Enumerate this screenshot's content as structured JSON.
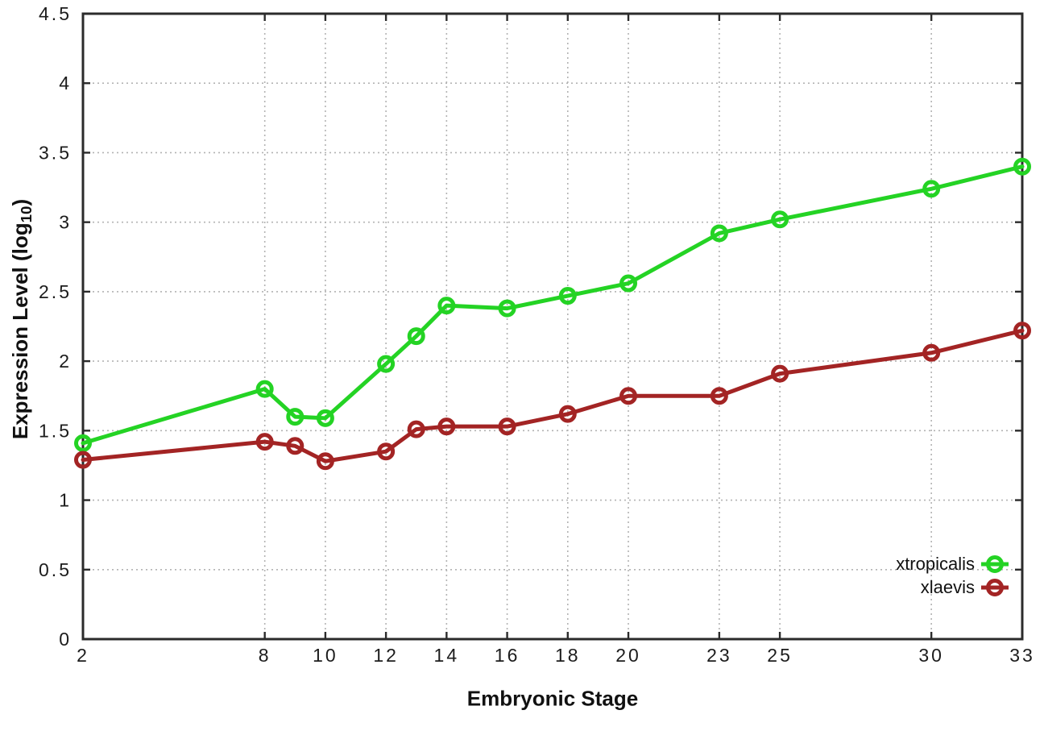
{
  "page": {
    "background": "#ffffff"
  },
  "chart_data": {
    "type": "line",
    "title": "",
    "xlabel": "Embryonic Stage",
    "ylabel": "Expression Level (log10)",
    "ylabel_parts": {
      "prefix": "Expression Level (log",
      "sub": "10",
      "suffix": ")"
    },
    "xlim": [
      2,
      33
    ],
    "ylim": [
      0,
      4.5
    ],
    "x_ticks": [
      2,
      8,
      10,
      12,
      14,
      16,
      18,
      20,
      23,
      25,
      30,
      33
    ],
    "x_tick_labels": [
      "2",
      "8",
      "10",
      "12",
      "14",
      "16",
      "18",
      "20",
      "23",
      "25",
      "30",
      "33"
    ],
    "y_ticks": [
      0,
      0.5,
      1,
      1.5,
      2,
      2.5,
      3,
      3.5,
      4,
      4.5
    ],
    "y_tick_labels": [
      "0",
      "0.5",
      "1",
      "1.5",
      "2",
      "2.5",
      "3",
      "3.5",
      "4",
      "4.5"
    ],
    "grid": true,
    "legend_position": "inside-bottom-right",
    "x": [
      2,
      8,
      9,
      10,
      12,
      13,
      14,
      16,
      18,
      20,
      23,
      25,
      30,
      33
    ],
    "series": [
      {
        "name": "xtropicalis",
        "color": "#24d324",
        "values": [
          1.41,
          1.8,
          1.6,
          1.59,
          1.98,
          2.18,
          2.4,
          2.38,
          2.47,
          2.56,
          2.92,
          3.02,
          3.24,
          3.4
        ]
      },
      {
        "name": "xlaevis",
        "color": "#a32424",
        "values": [
          1.29,
          1.42,
          1.39,
          1.28,
          1.35,
          1.51,
          1.53,
          1.53,
          1.62,
          1.75,
          1.75,
          1.91,
          2.06,
          2.22
        ]
      }
    ],
    "axis_color": "#2b2b2b",
    "grid_color": "#b3b3b3"
  }
}
